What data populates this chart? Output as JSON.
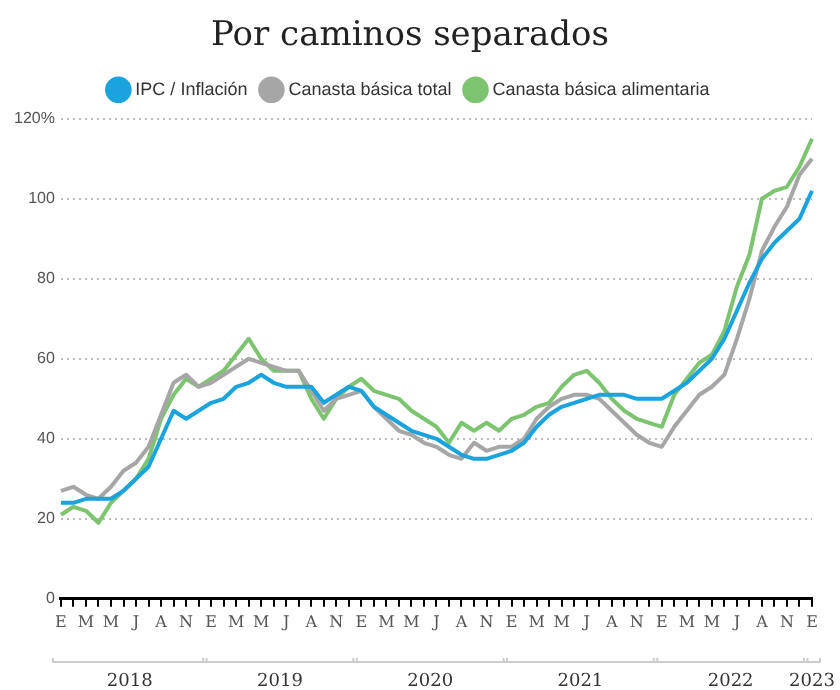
{
  "chart_data": {
    "type": "line",
    "title": "Por caminos separados",
    "categories": [
      "E",
      null,
      "M",
      null,
      "M",
      null,
      "J",
      null,
      "A",
      null,
      "N",
      null,
      "E",
      null,
      "M",
      null,
      "M",
      null,
      "J",
      null,
      "A",
      null,
      "N",
      null,
      "E",
      null,
      "M",
      null,
      "M",
      null,
      "J",
      null,
      "A",
      null,
      "N",
      null,
      "E",
      null,
      "M",
      null,
      "M",
      null,
      "J",
      null,
      "A",
      null,
      "N",
      null,
      "E",
      null,
      "M",
      null,
      "M",
      null,
      "J",
      null,
      "A",
      null,
      "N",
      null,
      "E"
    ],
    "series": [
      {
        "name": "IPC / Inflación",
        "color": "#1aa3dc",
        "values": [
          24,
          24,
          25,
          25,
          25,
          27,
          30,
          33,
          40,
          47,
          45,
          47,
          49,
          50,
          53,
          54,
          56,
          54,
          53,
          53,
          53,
          49,
          51,
          53,
          52,
          48,
          46,
          44,
          42,
          41,
          40,
          38,
          36,
          35,
          35,
          36,
          37,
          39,
          43,
          46,
          48,
          49,
          50,
          51,
          51,
          51,
          50,
          50,
          50,
          52,
          54,
          57,
          60,
          65,
          72,
          79,
          85,
          89,
          92,
          95,
          102
        ]
      },
      {
        "name": "Canasta básica total",
        "color": "#a6a6a6",
        "values": [
          27,
          28,
          26,
          25,
          28,
          32,
          34,
          38,
          46,
          54,
          56,
          53,
          54,
          56,
          58,
          60,
          59,
          58,
          57,
          57,
          52,
          47,
          50,
          51,
          52,
          48,
          45,
          42,
          41,
          39,
          38,
          36,
          35,
          39,
          37,
          38,
          38,
          40,
          45,
          48,
          50,
          51,
          51,
          50,
          47,
          44,
          41,
          39,
          38,
          43,
          47,
          51,
          53,
          56,
          65,
          75,
          87,
          93,
          98,
          106,
          110
        ]
      },
      {
        "name": "Canasta básica alimentaria",
        "color": "#7cc46f",
        "values": [
          21,
          23,
          22,
          19,
          24,
          27,
          30,
          35,
          45,
          51,
          55,
          53,
          55,
          57,
          61,
          65,
          60,
          57,
          57,
          57,
          50,
          45,
          50,
          53,
          55,
          52,
          51,
          50,
          47,
          45,
          43,
          39,
          44,
          42,
          44,
          42,
          45,
          46,
          48,
          49,
          53,
          56,
          57,
          54,
          50,
          47,
          45,
          44,
          43,
          51,
          55,
          59,
          61,
          67,
          78,
          86,
          100,
          102,
          103,
          108,
          115
        ]
      }
    ],
    "ylim": [
      0,
      120
    ],
    "yticks": [
      0,
      20,
      40,
      60,
      80,
      100,
      {
        "value": 120,
        "label": "120%"
      }
    ],
    "grid": "y",
    "legend": "top",
    "marker": "none",
    "line_style": "solid",
    "annotations": [
      "2018",
      "2019",
      "2020",
      "2021",
      "2022",
      "2023"
    ]
  }
}
